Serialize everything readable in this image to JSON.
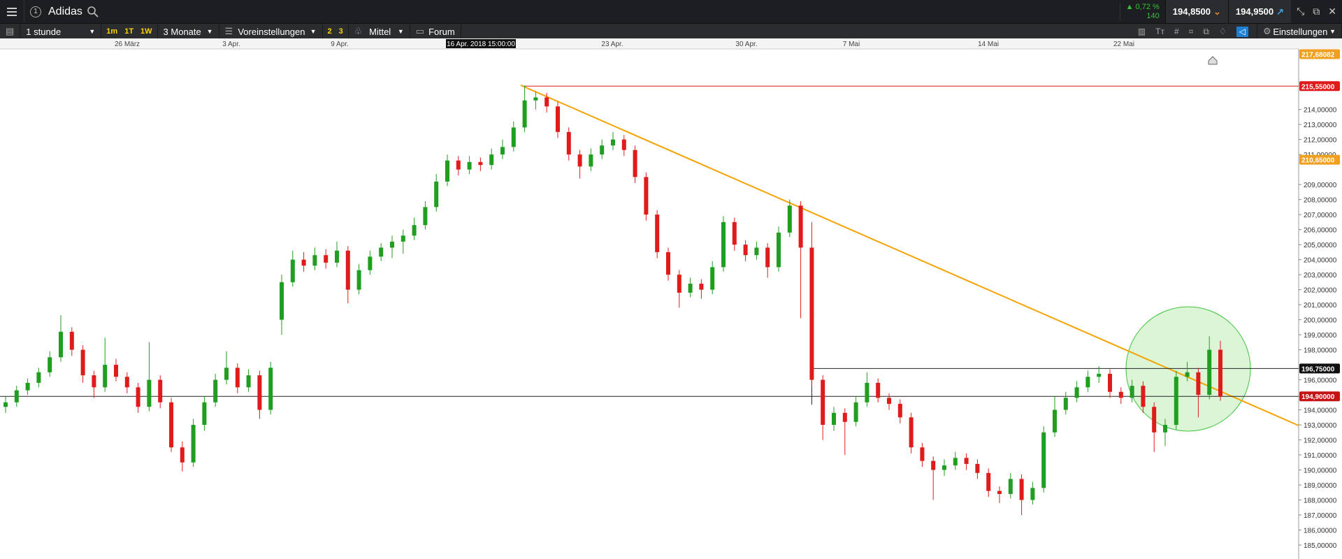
{
  "header": {
    "notification": "1",
    "instrument": "Adidas",
    "change": "▲ 0,72 %",
    "volume": "140",
    "sell": "194,8500",
    "buy": "194,9500"
  },
  "toolbar": {
    "interval": "1 stunde",
    "quick": [
      "1m",
      "1T",
      "1W"
    ],
    "range": "3 Monate",
    "presets": "Voreinstellungen",
    "layouts": [
      "2",
      "3"
    ],
    "indicator": "Mittel",
    "forum": "Forum",
    "settings": "Einstellungen"
  },
  "chart_data": {
    "type": "candlestick",
    "up_color": "#1f9e1f",
    "down_color": "#e01b1b",
    "x_labels": [
      "26 März",
      "3 Apr.",
      "9 Apr.",
      "16 Apr. 2018 15:00:00",
      "23 Apr.",
      "30 Apr.",
      "7 Mai",
      "14 Mai",
      "22 Mai"
    ],
    "ylim": [
      184.07,
      218.03
    ],
    "yticks": [
      {
        "value": 185,
        "label": "185,00000"
      },
      {
        "value": 186,
        "label": "186,00000"
      },
      {
        "value": 187,
        "label": "187,00000"
      },
      {
        "value": 188,
        "label": "188,00000"
      },
      {
        "value": 189,
        "label": "189,00000"
      },
      {
        "value": 190,
        "label": "190,00000"
      },
      {
        "value": 191,
        "label": "191,00000"
      },
      {
        "value": 192,
        "label": "192,00000"
      },
      {
        "value": 193,
        "label": "193,00000"
      },
      {
        "value": 194,
        "label": "194,00000"
      },
      {
        "value": 196,
        "label": "196,00000"
      },
      {
        "value": 198,
        "label": "198,00000"
      },
      {
        "value": 199,
        "label": "199,00000"
      },
      {
        "value": 200,
        "label": "200,00000"
      },
      {
        "value": 201,
        "label": "201,00000"
      },
      {
        "value": 202,
        "label": "202,00000"
      },
      {
        "value": 203,
        "label": "203,00000"
      },
      {
        "value": 204,
        "label": "204,00000"
      },
      {
        "value": 205,
        "label": "205,00000"
      },
      {
        "value": 206,
        "label": "206,00000"
      },
      {
        "value": 207,
        "label": "207,00000"
      },
      {
        "value": 208,
        "label": "208,00000"
      },
      {
        "value": 209,
        "label": "209,00000"
      },
      {
        "value": 211,
        "label": "211,00000"
      },
      {
        "value": 212,
        "label": "212,00000"
      },
      {
        "value": 213,
        "label": "213,00000"
      },
      {
        "value": 214,
        "label": "214,00000"
      }
    ],
    "price_labels": [
      {
        "value": 217.68082,
        "label": "217,68082",
        "color": "#f0a020"
      },
      {
        "value": 215.55,
        "label": "215,55000",
        "color": "#e01b1b"
      },
      {
        "value": 210.65,
        "label": "210,65000",
        "color": "#f0a020"
      },
      {
        "value": 196.75,
        "label": "196,75000",
        "color": "#111111"
      },
      {
        "value": 194.9,
        "label": "194,90000",
        "color": "#c41414"
      }
    ],
    "candles": [
      [
        194.2,
        194.9,
        193.8,
        194.5
      ],
      [
        194.5,
        195.6,
        194.2,
        195.3
      ],
      [
        195.3,
        196.1,
        195.0,
        195.8
      ],
      [
        195.8,
        196.8,
        195.5,
        196.5
      ],
      [
        196.5,
        197.9,
        196.2,
        197.5
      ],
      [
        197.5,
        200.3,
        197.2,
        199.2
      ],
      [
        199.2,
        199.5,
        197.6,
        198.0
      ],
      [
        198.0,
        198.3,
        195.8,
        196.3
      ],
      [
        196.3,
        196.6,
        194.8,
        195.5
      ],
      [
        195.5,
        198.8,
        195.2,
        197.0
      ],
      [
        197.0,
        197.4,
        195.9,
        196.2
      ],
      [
        196.2,
        196.5,
        195.1,
        195.5
      ],
      [
        195.5,
        195.8,
        193.8,
        194.2
      ],
      [
        194.2,
        198.5,
        193.9,
        196.0
      ],
      [
        196.0,
        196.3,
        194.1,
        194.5
      ],
      [
        194.5,
        194.8,
        191.2,
        191.5
      ],
      [
        191.5,
        191.9,
        189.9,
        190.5
      ],
      [
        190.5,
        193.4,
        190.2,
        193.0
      ],
      [
        193.0,
        194.9,
        192.6,
        194.5
      ],
      [
        194.5,
        196.4,
        194.2,
        196.0
      ],
      [
        196.0,
        197.9,
        195.7,
        196.8
      ],
      [
        196.8,
        197.1,
        195.1,
        195.5
      ],
      [
        195.5,
        196.7,
        195.2,
        196.3
      ],
      [
        196.3,
        196.6,
        193.4,
        194.0
      ],
      [
        194.0,
        197.2,
        193.7,
        196.8
      ],
      [
        200.0,
        203.0,
        199.0,
        202.5
      ],
      [
        202.5,
        204.6,
        202.2,
        204.0
      ],
      [
        204.0,
        204.5,
        203.2,
        203.6
      ],
      [
        203.6,
        204.8,
        203.3,
        204.3
      ],
      [
        204.3,
        204.7,
        203.4,
        203.8
      ],
      [
        203.8,
        205.2,
        203.5,
        204.6
      ],
      [
        204.6,
        204.9,
        201.1,
        202.0
      ],
      [
        202.0,
        203.7,
        201.7,
        203.3
      ],
      [
        203.3,
        204.6,
        203.0,
        204.2
      ],
      [
        204.2,
        205.1,
        203.9,
        204.8
      ],
      [
        204.8,
        205.6,
        204.1,
        205.2
      ],
      [
        205.2,
        206.0,
        204.4,
        205.6
      ],
      [
        205.6,
        206.8,
        205.3,
        206.3
      ],
      [
        206.3,
        207.9,
        206.0,
        207.5
      ],
      [
        207.5,
        209.7,
        207.2,
        209.2
      ],
      [
        209.2,
        211.0,
        208.9,
        210.6
      ],
      [
        210.6,
        210.9,
        209.6,
        210.0
      ],
      [
        210.0,
        210.9,
        209.7,
        210.5
      ],
      [
        210.5,
        210.8,
        209.9,
        210.3
      ],
      [
        210.3,
        211.4,
        210.0,
        211.0
      ],
      [
        211.0,
        212.0,
        210.7,
        211.5
      ],
      [
        211.5,
        213.2,
        211.2,
        212.8
      ],
      [
        212.8,
        215.6,
        212.5,
        214.6
      ],
      [
        214.6,
        215.2,
        214.0,
        214.8
      ],
      [
        214.8,
        215.1,
        213.8,
        214.2
      ],
      [
        214.2,
        214.5,
        212.1,
        212.5
      ],
      [
        212.5,
        212.8,
        210.6,
        211.0
      ],
      [
        211.0,
        211.3,
        209.4,
        210.2
      ],
      [
        210.2,
        211.4,
        209.9,
        211.0
      ],
      [
        211.0,
        212.0,
        210.7,
        211.6
      ],
      [
        211.6,
        212.5,
        211.3,
        212.0
      ],
      [
        212.0,
        212.3,
        210.9,
        211.3
      ],
      [
        211.3,
        211.6,
        209.1,
        209.5
      ],
      [
        209.5,
        209.8,
        206.6,
        207.0
      ],
      [
        207.0,
        207.3,
        204.1,
        204.5
      ],
      [
        204.5,
        204.8,
        202.6,
        203.0
      ],
      [
        203.0,
        203.3,
        200.8,
        201.8
      ],
      [
        201.8,
        202.8,
        201.5,
        202.4
      ],
      [
        202.4,
        202.7,
        201.4,
        202.0
      ],
      [
        202.0,
        203.9,
        201.7,
        203.5
      ],
      [
        203.5,
        206.9,
        203.2,
        206.5
      ],
      [
        206.5,
        206.8,
        204.6,
        205.0
      ],
      [
        205.0,
        205.3,
        203.9,
        204.3
      ],
      [
        204.3,
        205.2,
        204.0,
        204.8
      ],
      [
        204.8,
        205.1,
        202.8,
        203.5
      ],
      [
        203.5,
        206.2,
        203.2,
        205.8
      ],
      [
        205.8,
        208.0,
        205.5,
        207.6
      ],
      [
        207.6,
        207.9,
        200.1,
        204.8
      ],
      [
        204.8,
        206.5,
        195.5,
        196.0
      ],
      [
        196.0,
        196.3,
        192.0,
        193.0
      ],
      [
        193.0,
        194.2,
        192.6,
        193.8
      ],
      [
        193.8,
        194.1,
        191.0,
        193.2
      ],
      [
        193.2,
        194.9,
        192.9,
        194.5
      ],
      [
        194.5,
        196.5,
        194.2,
        195.8
      ],
      [
        195.8,
        196.1,
        194.5,
        194.8
      ],
      [
        194.8,
        195.1,
        194.0,
        194.4
      ],
      [
        194.4,
        194.7,
        193.1,
        193.5
      ],
      [
        193.5,
        193.8,
        191.1,
        191.5
      ],
      [
        191.5,
        191.8,
        190.2,
        190.6
      ],
      [
        190.6,
        190.9,
        188.0,
        190.0
      ],
      [
        190.0,
        190.7,
        189.6,
        190.3
      ],
      [
        190.3,
        191.2,
        190.0,
        190.8
      ],
      [
        190.8,
        191.1,
        190.0,
        190.4
      ],
      [
        190.4,
        190.7,
        189.4,
        189.8
      ],
      [
        189.8,
        190.1,
        188.2,
        188.6
      ],
      [
        188.6,
        188.9,
        187.8,
        188.4
      ],
      [
        188.4,
        189.8,
        188.1,
        189.4
      ],
      [
        189.4,
        189.7,
        187.0,
        188.0
      ],
      [
        188.0,
        189.2,
        187.7,
        188.8
      ],
      [
        188.8,
        192.9,
        188.5,
        192.5
      ],
      [
        192.5,
        194.9,
        192.2,
        194.0
      ],
      [
        194.0,
        195.2,
        193.7,
        194.8
      ],
      [
        194.8,
        195.9,
        194.5,
        195.5
      ],
      [
        195.5,
        196.6,
        195.2,
        196.2
      ],
      [
        196.2,
        196.9,
        195.8,
        196.4
      ],
      [
        196.4,
        196.7,
        194.8,
        195.2
      ],
      [
        195.2,
        195.5,
        194.4,
        194.8
      ],
      [
        194.8,
        196.0,
        194.5,
        195.6
      ],
      [
        195.6,
        195.9,
        193.8,
        194.2
      ],
      [
        194.2,
        194.5,
        191.2,
        192.5
      ],
      [
        192.5,
        193.4,
        191.6,
        193.0
      ],
      [
        193.0,
        196.6,
        192.7,
        196.2
      ],
      [
        196.2,
        197.2,
        195.9,
        196.5
      ],
      [
        196.5,
        196.8,
        193.5,
        195.0
      ],
      [
        195.0,
        198.9,
        194.7,
        198.0
      ],
      [
        198.0,
        198.6,
        194.6,
        194.9
      ]
    ]
  }
}
